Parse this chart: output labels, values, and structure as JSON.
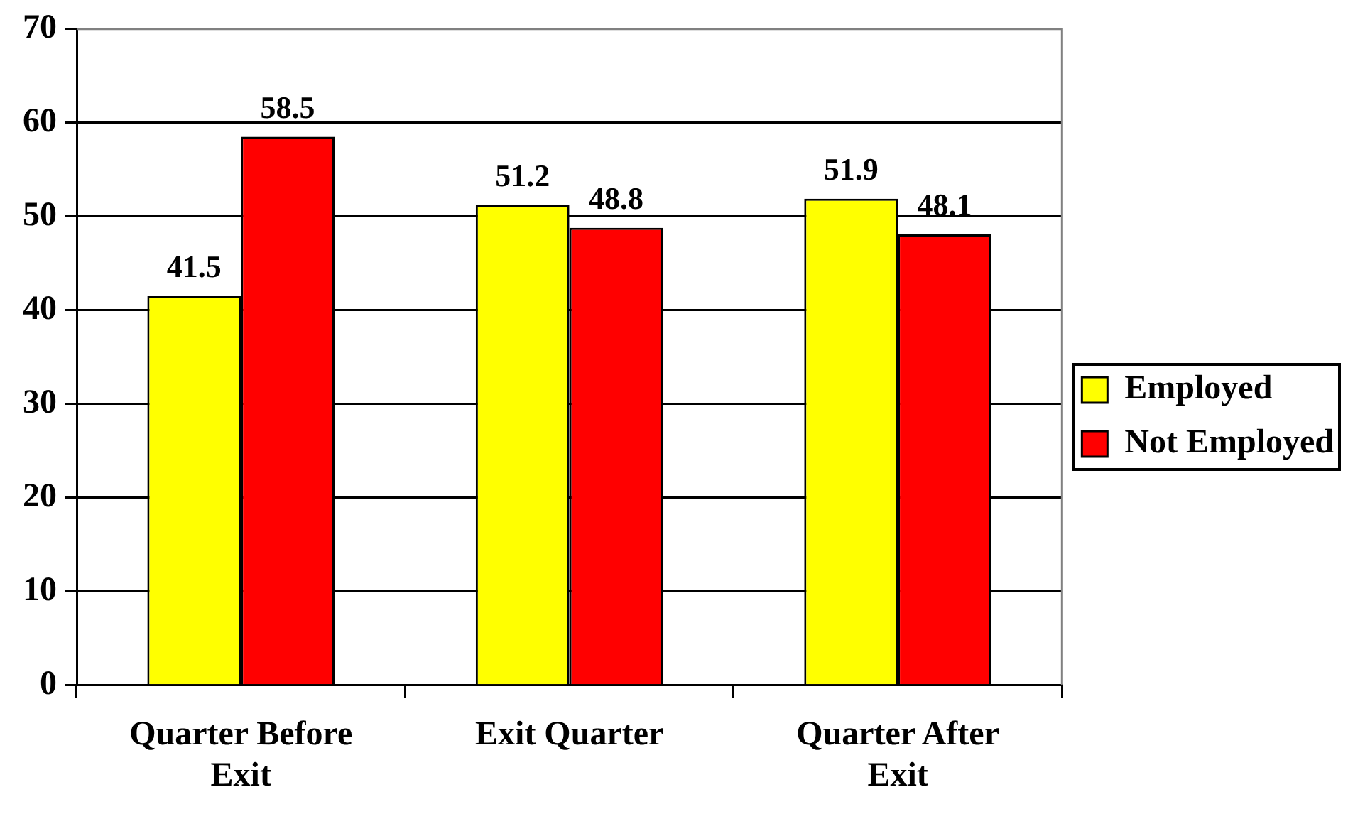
{
  "chart_data": {
    "type": "bar",
    "categories": [
      "Quarter Before Exit",
      "Exit Quarter",
      "Quarter After Exit"
    ],
    "series": [
      {
        "name": "Employed",
        "color": "#ffff00",
        "values": [
          41.5,
          51.2,
          51.9
        ]
      },
      {
        "name": "Not Employed",
        "color": "#ff0000",
        "values": [
          58.5,
          48.8,
          48.1
        ]
      }
    ],
    "ylim": [
      0,
      70
    ],
    "yticks": [
      0,
      10,
      20,
      30,
      40,
      50,
      60,
      70
    ],
    "grid": "y",
    "legend": "right",
    "data_labels": true
  }
}
